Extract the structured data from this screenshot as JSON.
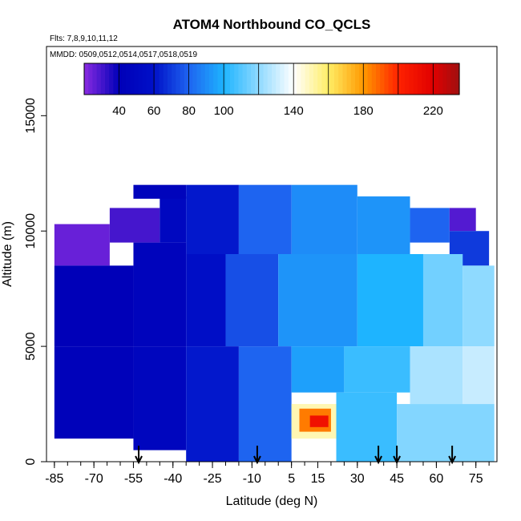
{
  "chart_data": {
    "type": "heatmap",
    "title": "ATOM4 Northbound CO_QCLS",
    "subtitle_flights": "Flts: 7,8,9,10,11,12",
    "subtitle_dates": "MMDD: 0509,0512,0514,0517,0518,0519",
    "xlabel": "Latitude (deg N)",
    "ylabel": "Altitude (m)",
    "xlim": [
      -88,
      83
    ],
    "ylim": [
      0,
      18000
    ],
    "x_ticks": [
      -85,
      -70,
      -55,
      -40,
      -25,
      -10,
      5,
      15,
      30,
      45,
      60,
      75
    ],
    "y_ticks": [
      0,
      5000,
      10000,
      15000
    ],
    "colorbar": {
      "range": [
        20,
        235
      ],
      "labels": [
        40,
        60,
        80,
        100,
        140,
        180,
        220
      ],
      "stops": [
        {
          "v": 20,
          "c": "#8a2be2"
        },
        {
          "v": 40,
          "c": "#0000b8"
        },
        {
          "v": 60,
          "c": "#0010c8"
        },
        {
          "v": 80,
          "c": "#1e64f0"
        },
        {
          "v": 100,
          "c": "#1eb4ff"
        },
        {
          "v": 140,
          "c": "#ffffff"
        },
        {
          "v": 160,
          "c": "#ffee66"
        },
        {
          "v": 180,
          "c": "#ff9900"
        },
        {
          "v": 200,
          "c": "#ff2200"
        },
        {
          "v": 220,
          "c": "#e00000"
        },
        {
          "v": 235,
          "c": "#a01010"
        }
      ]
    },
    "arrows_latitude": [
      -53,
      -8,
      38,
      45,
      66
    ],
    "cells": [
      {
        "x0": -85,
        "x1": -64,
        "y0": 8500,
        "y1": 10300,
        "v": 25
      },
      {
        "x0": -64,
        "x1": -45,
        "y0": 9500,
        "y1": 11000,
        "v": 30
      },
      {
        "x0": -45,
        "x1": -35,
        "y0": 9500,
        "y1": 11500,
        "v": 50
      },
      {
        "x0": -55,
        "x1": -35,
        "y0": 11400,
        "y1": 12000,
        "v": 45
      },
      {
        "x0": -35,
        "x1": -15,
        "y0": 9000,
        "y1": 12000,
        "v": 62
      },
      {
        "x0": -15,
        "x1": 5,
        "y0": 9000,
        "y1": 12000,
        "v": 80
      },
      {
        "x0": 5,
        "x1": 30,
        "y0": 9000,
        "y1": 12000,
        "v": 90
      },
      {
        "x0": 30,
        "x1": 50,
        "y0": 9000,
        "y1": 11500,
        "v": 92
      },
      {
        "x0": 50,
        "x1": 65,
        "y0": 9500,
        "y1": 11000,
        "v": 80
      },
      {
        "x0": 65,
        "x1": 75,
        "y0": 10000,
        "y1": 11000,
        "v": 28
      },
      {
        "x0": 65,
        "x1": 80,
        "y0": 8500,
        "y1": 10000,
        "v": 70
      },
      {
        "x0": -85,
        "x1": -55,
        "y0": 5000,
        "y1": 8500,
        "v": 40
      },
      {
        "x0": -55,
        "x1": -35,
        "y0": 5000,
        "y1": 9500,
        "v": 45
      },
      {
        "x0": -35,
        "x1": -20,
        "y0": 5000,
        "y1": 9000,
        "v": 58
      },
      {
        "x0": -20,
        "x1": 0,
        "y0": 5000,
        "y1": 9000,
        "v": 75
      },
      {
        "x0": 0,
        "x1": 30,
        "y0": 5000,
        "y1": 9000,
        "v": 92
      },
      {
        "x0": 30,
        "x1": 55,
        "y0": 5000,
        "y1": 9000,
        "v": 100
      },
      {
        "x0": 55,
        "x1": 70,
        "y0": 5000,
        "y1": 9000,
        "v": 115
      },
      {
        "x0": 70,
        "x1": 82,
        "y0": 5000,
        "y1": 8500,
        "v": 120
      },
      {
        "x0": -85,
        "x1": -55,
        "y0": 1000,
        "y1": 5000,
        "v": 42
      },
      {
        "x0": -55,
        "x1": -35,
        "y0": 500,
        "y1": 5000,
        "v": 48
      },
      {
        "x0": -35,
        "x1": -15,
        "y0": 0,
        "y1": 5000,
        "v": 62
      },
      {
        "x0": -15,
        "x1": 5,
        "y0": 0,
        "y1": 5000,
        "v": 80
      },
      {
        "x0": 5,
        "x1": 25,
        "y0": 3000,
        "y1": 5000,
        "v": 95
      },
      {
        "x0": 25,
        "x1": 50,
        "y0": 3000,
        "y1": 5000,
        "v": 105
      },
      {
        "x0": 50,
        "x1": 70,
        "y0": 2500,
        "y1": 5000,
        "v": 125
      },
      {
        "x0": 70,
        "x1": 82,
        "y0": 2500,
        "y1": 5000,
        "v": 130
      },
      {
        "x0": 5,
        "x1": 22,
        "y0": 1000,
        "y1": 2500,
        "v": 150
      },
      {
        "x0": 8,
        "x1": 20,
        "y0": 1300,
        "y1": 2300,
        "v": 185
      },
      {
        "x0": 12,
        "x1": 19,
        "y0": 1500,
        "y1": 2000,
        "v": 210
      },
      {
        "x0": 22,
        "x1": 45,
        "y0": 0,
        "y1": 3000,
        "v": 105
      },
      {
        "x0": 45,
        "x1": 82,
        "y0": 0,
        "y1": 2500,
        "v": 118
      }
    ]
  }
}
